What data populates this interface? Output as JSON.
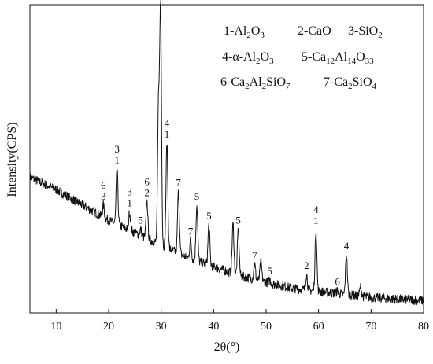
{
  "chart_data": {
    "type": "line",
    "title": "",
    "xlabel": "2θ(°)",
    "ylabel": "Intensity(CPS)",
    "xlim": [
      5,
      80
    ],
    "x_ticks": [
      "10",
      "20",
      "30",
      "40",
      "50",
      "60",
      "70",
      "80"
    ],
    "y_ticks_labeled": false,
    "grid": false,
    "legend_position": "top-right",
    "line_color": "#111111",
    "legend": [
      [
        {
          "parts": [
            {
              "t": "1-Al"
            },
            {
              "t": "2",
              "sub": true
            },
            {
              "t": "O"
            },
            {
              "t": "3",
              "sub": true
            }
          ]
        },
        {
          "parts": [
            {
              "t": "2-CaO"
            }
          ]
        },
        {
          "parts": [
            {
              "t": "3-SiO"
            },
            {
              "t": "2",
              "sub": true
            }
          ]
        }
      ],
      [
        {
          "parts": [
            {
              "t": "4-α-Al"
            },
            {
              "t": "2",
              "sub": true
            },
            {
              "t": "O"
            },
            {
              "t": "3",
              "sub": true
            }
          ]
        },
        {
          "parts": [
            {
              "t": "5-Ca"
            },
            {
              "t": "12",
              "sub": true
            },
            {
              "t": "Al"
            },
            {
              "t": "14",
              "sub": true
            },
            {
              "t": "O"
            },
            {
              "t": "33",
              "sub": true
            }
          ]
        }
      ],
      [
        {
          "parts": [
            {
              "t": "6-Ca"
            },
            {
              "t": "2",
              "sub": true
            },
            {
              "t": "Al"
            },
            {
              "t": "2",
              "sub": true
            },
            {
              "t": "SiO"
            },
            {
              "t": "7",
              "sub": true
            }
          ]
        },
        {
          "parts": [
            {
              "t": "7-Ca"
            },
            {
              "t": "2",
              "sub": true
            },
            {
              "t": "SiO"
            },
            {
              "t": "4",
              "sub": true
            }
          ]
        }
      ]
    ],
    "baseline": [
      [
        5,
        0.44
      ],
      [
        10,
        0.4
      ],
      [
        15,
        0.35
      ],
      [
        20,
        0.3
      ],
      [
        25,
        0.26
      ],
      [
        30,
        0.22
      ],
      [
        35,
        0.18
      ],
      [
        40,
        0.15
      ],
      [
        45,
        0.12
      ],
      [
        50,
        0.1
      ],
      [
        55,
        0.08
      ],
      [
        60,
        0.07
      ],
      [
        70,
        0.05
      ],
      [
        80,
        0.04
      ]
    ],
    "noise_amplitude": 0.015,
    "peaks": [
      {
        "x": 19.0,
        "height": 0.04,
        "labels": [
          "6",
          "3"
        ]
      },
      {
        "x": 21.6,
        "height": 0.18,
        "labels": [
          "3",
          "1"
        ]
      },
      {
        "x": 24.0,
        "height": 0.06,
        "labels": [
          "3",
          "1"
        ]
      },
      {
        "x": 26.1,
        "height": 0.02,
        "labels": [
          "5"
        ]
      },
      {
        "x": 27.3,
        "height": 0.12,
        "labels": [
          "6",
          "2"
        ]
      },
      {
        "x": 29.5,
        "height": 0.45,
        "labels": []
      },
      {
        "x": 29.9,
        "height": 0.76,
        "labels": [
          "4",
          "1"
        ]
      },
      {
        "x": 31.1,
        "height": 0.34,
        "labels": [
          "4",
          "1"
        ]
      },
      {
        "x": 33.3,
        "height": 0.2,
        "labels": [
          "7"
        ]
      },
      {
        "x": 35.6,
        "height": 0.06,
        "labels": [
          "7"
        ]
      },
      {
        "x": 36.8,
        "height": 0.18,
        "labels": [
          "5"
        ]
      },
      {
        "x": 39.1,
        "height": 0.13,
        "labels": [
          "5"
        ]
      },
      {
        "x": 43.7,
        "height": 0.16,
        "labels": []
      },
      {
        "x": 44.7,
        "height": 0.15,
        "labels": [
          "5"
        ]
      },
      {
        "x": 47.8,
        "height": 0.05,
        "labels": [
          "7"
        ]
      },
      {
        "x": 49.0,
        "height": 0.06,
        "labels": []
      },
      {
        "x": 50.7,
        "height": 0.01,
        "labels": [
          "5"
        ]
      },
      {
        "x": 57.7,
        "height": 0.05,
        "labels": [
          "2"
        ]
      },
      {
        "x": 59.5,
        "height": 0.2,
        "labels": [
          "4",
          "1"
        ]
      },
      {
        "x": 63.6,
        "height": 0.01,
        "labels": [
          "6"
        ]
      },
      {
        "x": 65.3,
        "height": 0.13,
        "labels": [
          "4"
        ]
      },
      {
        "x": 68.0,
        "height": 0.03,
        "labels": []
      }
    ]
  }
}
